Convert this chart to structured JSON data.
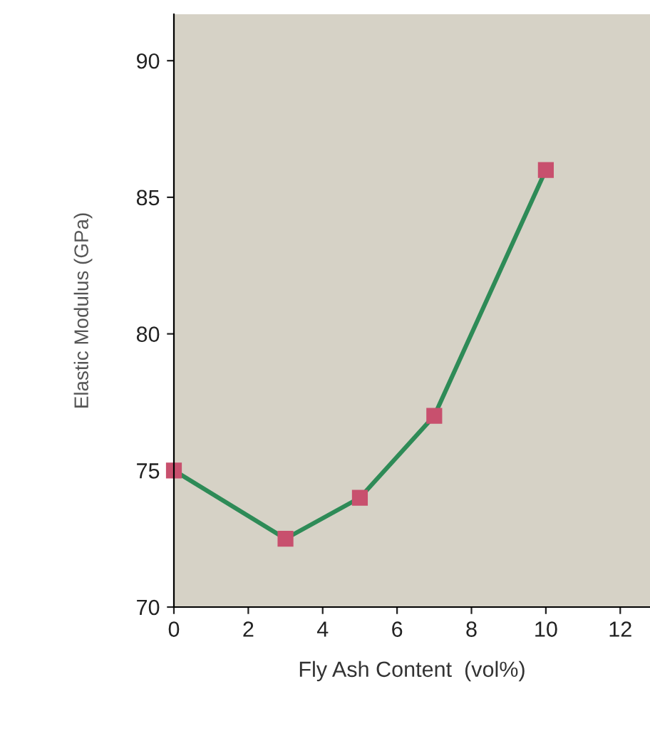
{
  "chart_data": {
    "type": "line",
    "xlabel": "Fly Ash Content  (vol%)",
    "ylabel": "Elastic Modulus (GPa)",
    "x": [
      0,
      3,
      5,
      7,
      10
    ],
    "series": [
      {
        "color": "#2e8b57",
        "values": [
          75,
          72.5,
          74,
          77,
          86
        ]
      }
    ],
    "marker": "square",
    "line_style": "solid",
    "xlim": [
      0,
      12.8
    ],
    "xticks": [
      0,
      2,
      4,
      6,
      8,
      10,
      12
    ],
    "ylim": [
      70,
      91.7
    ],
    "yticks": [
      70,
      75,
      80,
      85,
      90
    ],
    "grid": false,
    "legend": false
  }
}
